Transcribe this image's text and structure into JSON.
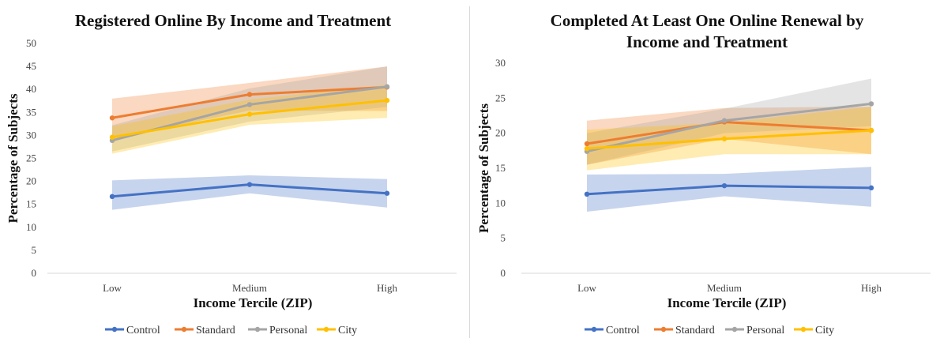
{
  "chart_data": [
    {
      "type": "line",
      "title": "Registered Online By Income and Treatment",
      "title_lines": [
        "Registered Online By Income and Treatment"
      ],
      "xlabel": "Income Tercile (ZIP)",
      "ylabel": "Percentage of Subjects",
      "categories": [
        "Low",
        "Medium",
        "High"
      ],
      "ylim": [
        0,
        50
      ],
      "yticks": [
        0,
        5,
        10,
        15,
        20,
        25,
        30,
        35,
        40,
        45,
        50
      ],
      "grid": false,
      "legend_position": "bottom",
      "series": [
        {
          "name": "Control",
          "color": "#4472C4",
          "values": [
            16.7,
            19.3,
            17.4
          ],
          "lower": [
            13.8,
            17.4,
            14.3
          ],
          "upper": [
            20.2,
            21.3,
            20.5
          ]
        },
        {
          "name": "Standard",
          "color": "#ED7D31",
          "values": [
            33.8,
            38.9,
            40.5
          ],
          "lower": [
            29.3,
            35.4,
            35.3
          ],
          "upper": [
            38.0,
            41.4,
            45.0
          ]
        },
        {
          "name": "Personal",
          "color": "#A5A5A5",
          "values": [
            28.9,
            36.7,
            40.6
          ],
          "lower": [
            26.5,
            33.0,
            36.2
          ],
          "upper": [
            32.2,
            40.2,
            45.0
          ]
        },
        {
          "name": "City",
          "color": "#FFC000",
          "values": [
            29.6,
            34.6,
            37.6
          ],
          "lower": [
            26.0,
            32.3,
            33.8
          ],
          "upper": [
            32.0,
            37.8,
            41.0
          ]
        }
      ]
    },
    {
      "type": "line",
      "title": "Completed At Least One Online Renewal by Income and Treatment",
      "title_lines": [
        "Completed At Least One Online Renewal by",
        "Income and Treatment"
      ],
      "xlabel": "Income Tercile (ZIP)",
      "ylabel": "Percentage of Subjects",
      "categories": [
        "Low",
        "Medium",
        "High"
      ],
      "ylim": [
        0,
        30
      ],
      "yticks": [
        0,
        5,
        10,
        15,
        20,
        25,
        30
      ],
      "grid": false,
      "legend_position": "bottom",
      "series": [
        {
          "name": "Control",
          "color": "#4472C4",
          "values": [
            11.3,
            12.5,
            12.2
          ],
          "lower": [
            8.8,
            11.0,
            9.5
          ],
          "upper": [
            14.1,
            14.2,
            15.2
          ]
        },
        {
          "name": "Standard",
          "color": "#ED7D31",
          "values": [
            18.5,
            21.6,
            20.4
          ],
          "lower": [
            15.5,
            19.2,
            17.0
          ],
          "upper": [
            21.8,
            23.6,
            23.8
          ]
        },
        {
          "name": "Personal",
          "color": "#A5A5A5",
          "values": [
            17.4,
            21.8,
            24.2
          ],
          "lower": [
            15.5,
            20.0,
            21.0
          ],
          "upper": [
            20.0,
            23.5,
            27.8
          ]
        },
        {
          "name": "City",
          "color": "#FFC000",
          "values": [
            17.8,
            19.2,
            20.4
          ],
          "lower": [
            14.7,
            17.0,
            17.0
          ],
          "upper": [
            20.5,
            21.5,
            23.8
          ]
        }
      ]
    }
  ]
}
